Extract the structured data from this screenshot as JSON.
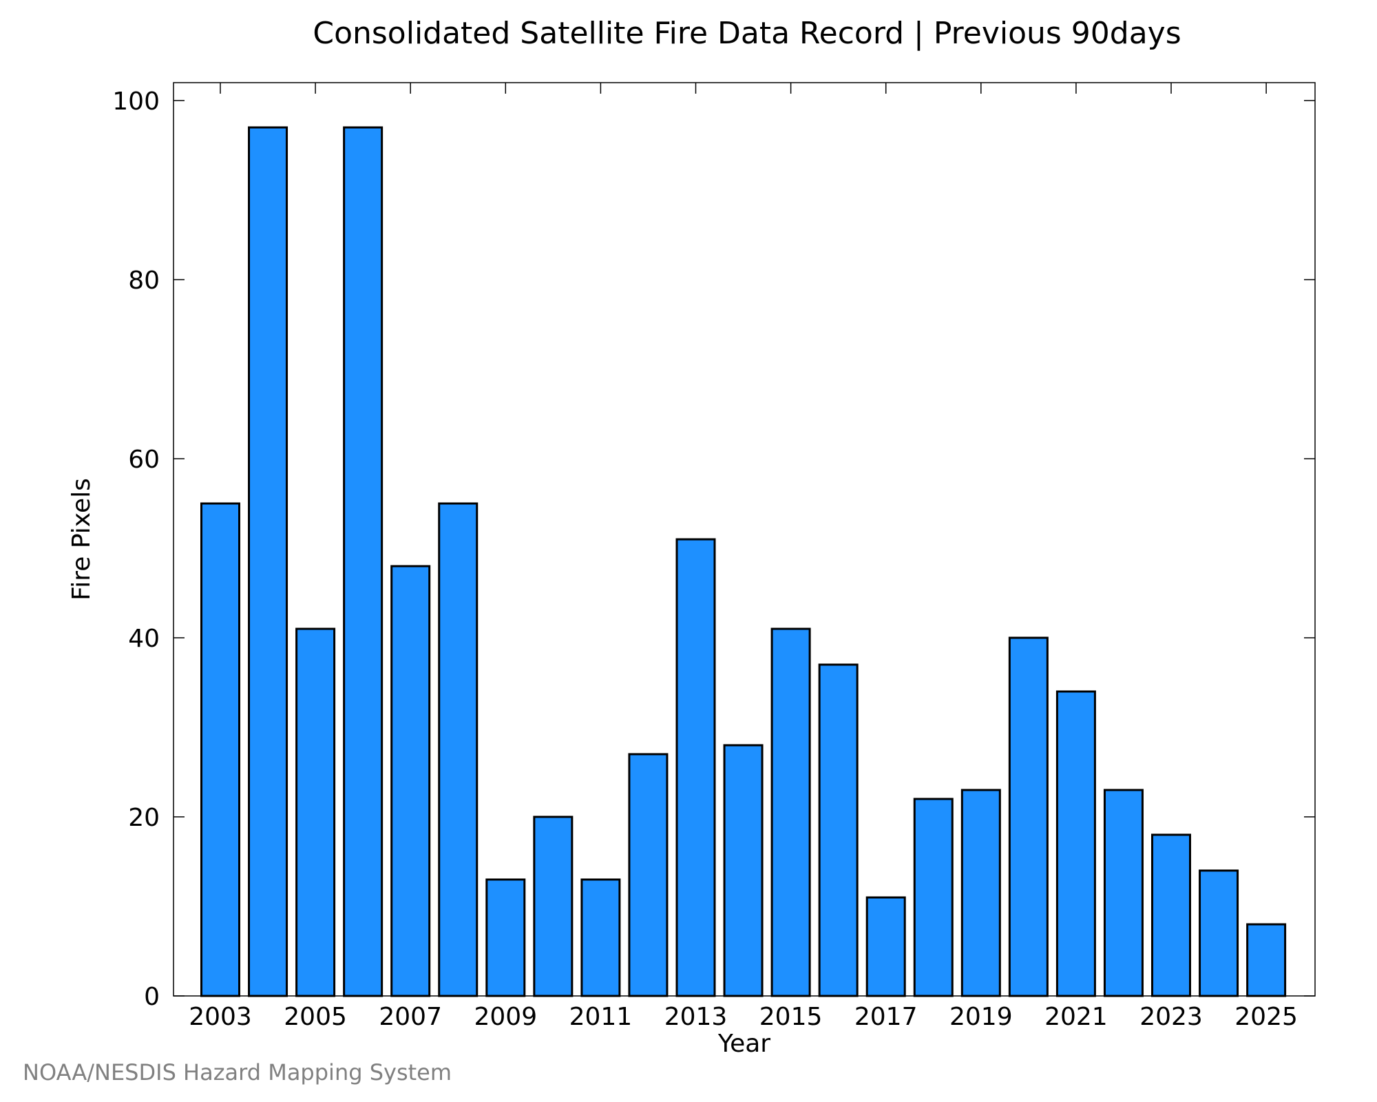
{
  "chart_data": {
    "type": "bar",
    "title": "Consolidated Satellite Fire Data Record | Previous 90days",
    "xlabel": "Year",
    "ylabel": "Fire Pixels",
    "categories": [
      "2003",
      "2004",
      "2005",
      "2006",
      "2007",
      "2008",
      "2009",
      "2010",
      "2011",
      "2012",
      "2013",
      "2014",
      "2015",
      "2016",
      "2017",
      "2018",
      "2019",
      "2020",
      "2021",
      "2022",
      "2023",
      "2024",
      "2025"
    ],
    "values": [
      55,
      97,
      41,
      97,
      48,
      55,
      13,
      20,
      13,
      27,
      51,
      28,
      41,
      37,
      11,
      22,
      23,
      40,
      34,
      23,
      18,
      14,
      8
    ],
    "x_tick_labels": [
      "2003",
      "2005",
      "2007",
      "2009",
      "2011",
      "2013",
      "2015",
      "2017",
      "2019",
      "2021",
      "2023",
      "2025"
    ],
    "y_ticks": [
      0,
      20,
      40,
      60,
      80,
      100
    ],
    "ylim": [
      0,
      102
    ],
    "grid": false,
    "legend": "none",
    "bar_color": "#1E90FF",
    "bar_edge_color": "#000000"
  },
  "footer": {
    "credit": "NOAA/NESDIS Hazard Mapping System"
  }
}
